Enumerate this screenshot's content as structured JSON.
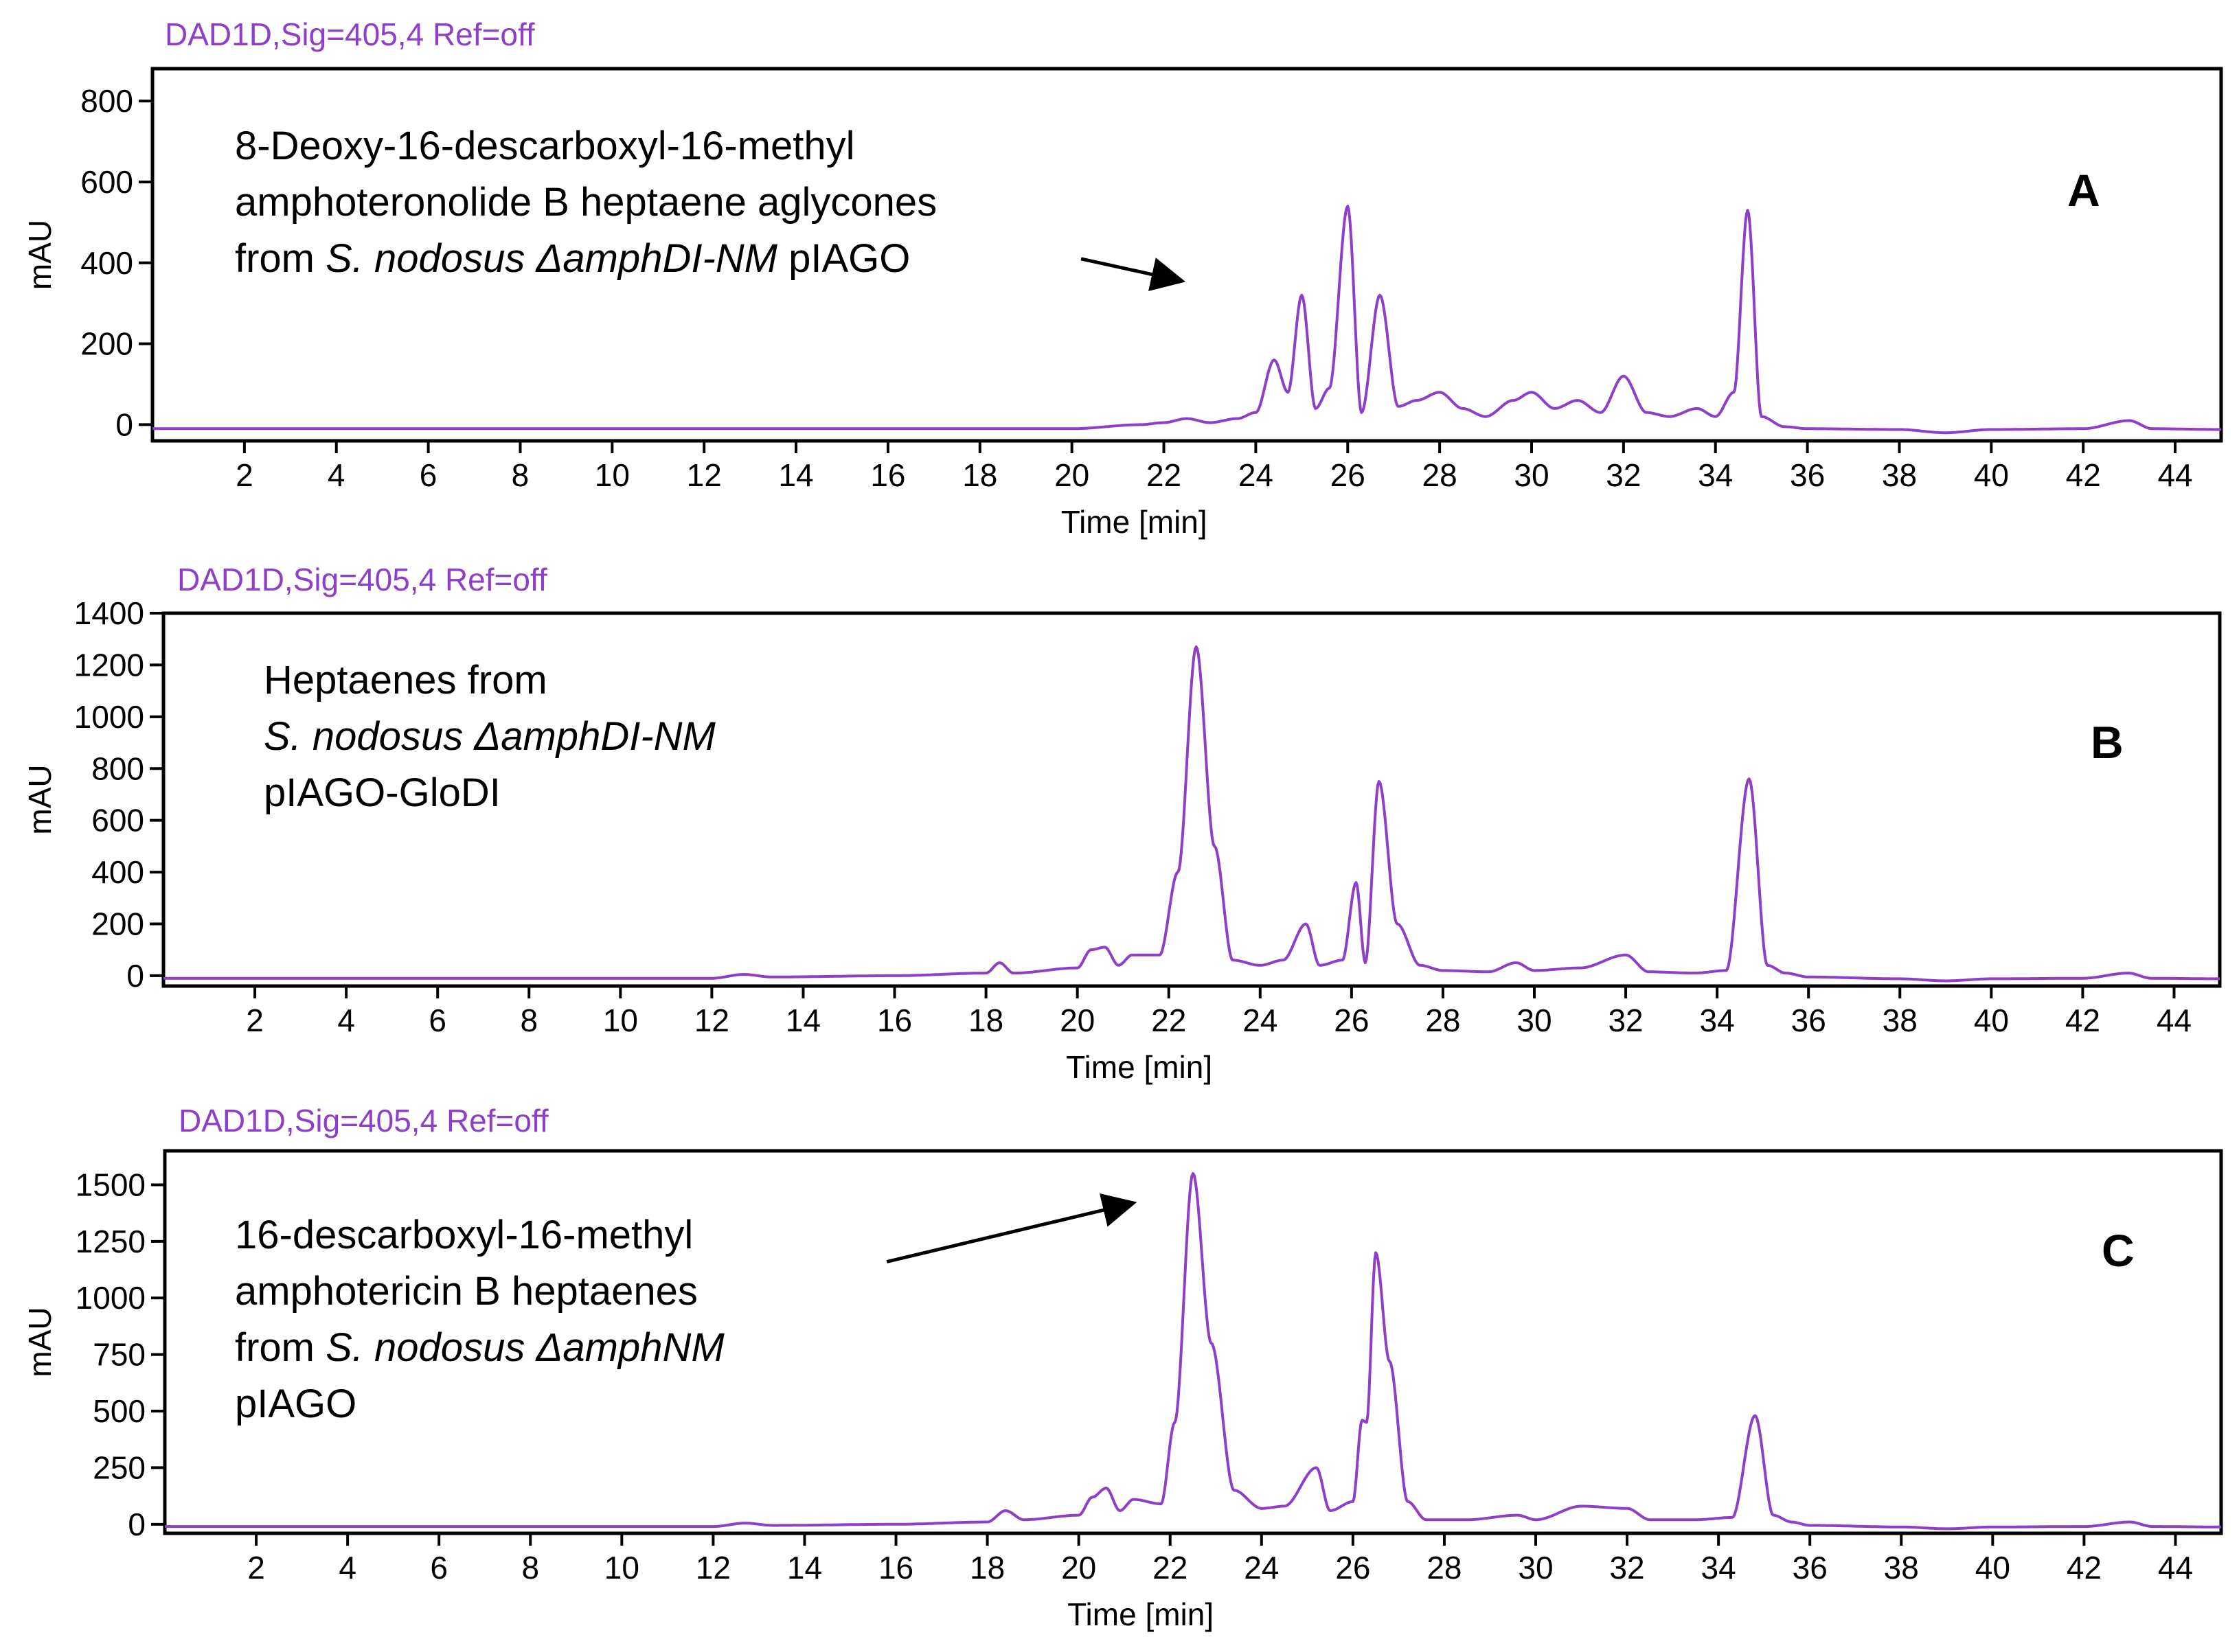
{
  "chart_data": [
    {
      "type": "line",
      "panel_label": "A",
      "signal_label": "DAD1D,Sig=405,4  Ref=off",
      "xlabel": "Time [min]",
      "ylabel": "mAU",
      "xlim": [
        0,
        45
      ],
      "ylim": [
        -40,
        880
      ],
      "xticks": [
        2,
        4,
        6,
        8,
        10,
        12,
        14,
        16,
        18,
        20,
        22,
        24,
        26,
        28,
        30,
        32,
        34,
        36,
        38,
        40,
        42,
        44
      ],
      "yticks": [
        0,
        200,
        400,
        600,
        800
      ],
      "annotation": [
        [
          {
            "t": "8-Deoxy-16-descarboxyl-16-methyl"
          }
        ],
        [
          {
            "t": "amphoteronolide B heptaene aglycones"
          }
        ],
        [
          {
            "t": "from "
          },
          {
            "t": "S. nodosus",
            "i": true
          },
          {
            "t": " "
          },
          {
            "t": "ΔamphDI-NM",
            "i": true
          },
          {
            "t": " pIAGO"
          }
        ]
      ],
      "arrow": {
        "from": [
          20.2,
          410
        ],
        "to": [
          22.4,
          355
        ]
      },
      "baseline": -10,
      "x": [
        0,
        20,
        21.5,
        22.0,
        22.5,
        23.0,
        23.6,
        24.0,
        24.4,
        24.7,
        25.0,
        25.3,
        25.6,
        26.0,
        26.3,
        26.7,
        27.1,
        27.5,
        28.0,
        28.5,
        29.0,
        29.6,
        30.0,
        30.5,
        31.0,
        31.5,
        32.0,
        32.5,
        33.0,
        33.6,
        34.0,
        34.4,
        34.7,
        35.0,
        35.5,
        36.0,
        38.0,
        39.0,
        40.0,
        42.0,
        43.0,
        43.5,
        45
      ],
      "y": [
        -10,
        -10,
        0,
        5,
        15,
        5,
        15,
        30,
        160,
        80,
        320,
        40,
        90,
        540,
        30,
        320,
        45,
        60,
        80,
        40,
        20,
        60,
        80,
        40,
        60,
        30,
        120,
        30,
        20,
        40,
        20,
        80,
        530,
        20,
        -5,
        -10,
        -12,
        -20,
        -12,
        -10,
        10,
        -10,
        -12
      ],
      "peak_widths": 0.14
    },
    {
      "type": "line",
      "panel_label": "B",
      "signal_label": "DAD1D,Sig=405,4  Ref=off",
      "xlabel": "Time [min]",
      "ylabel": "mAU",
      "xlim": [
        0,
        45
      ],
      "ylim": [
        -40,
        1400
      ],
      "xticks": [
        2,
        4,
        6,
        8,
        10,
        12,
        14,
        16,
        18,
        20,
        22,
        24,
        26,
        28,
        30,
        32,
        34,
        36,
        38,
        40,
        42,
        44
      ],
      "yticks": [
        0,
        200,
        400,
        600,
        800,
        1000,
        1200,
        1400
      ],
      "annotation": [
        [
          {
            "t": "Heptaenes from"
          }
        ],
        [
          {
            "t": "S. nodosus",
            "i": true
          },
          {
            "t": " "
          },
          {
            "t": "ΔamphDI-NM",
            "i": true
          }
        ],
        [
          {
            "t": "pIAGO-GloDI"
          }
        ]
      ],
      "baseline": -10,
      "x": [
        0,
        12,
        12.7,
        13.3,
        16.0,
        18.0,
        18.3,
        18.6,
        20.0,
        20.3,
        20.6,
        20.9,
        21.2,
        21.8,
        22.2,
        22.6,
        23.0,
        23.4,
        24.0,
        24.5,
        25.0,
        25.3,
        25.8,
        26.1,
        26.3,
        26.6,
        27.0,
        27.5,
        28.0,
        29.0,
        29.6,
        30.0,
        31.0,
        32.0,
        32.5,
        33.5,
        34.2,
        34.7,
        35.1,
        35.5,
        36.0,
        38.0,
        39.0,
        40.0,
        42.0,
        43.0,
        43.5,
        45
      ],
      "y": [
        -10,
        -10,
        5,
        -5,
        0,
        10,
        50,
        10,
        30,
        100,
        110,
        40,
        80,
        80,
        400,
        1270,
        500,
        60,
        40,
        60,
        200,
        40,
        60,
        360,
        50,
        750,
        200,
        40,
        20,
        15,
        50,
        20,
        30,
        80,
        15,
        10,
        20,
        760,
        40,
        10,
        -5,
        -12,
        -20,
        -12,
        -10,
        10,
        -10,
        -12
      ],
      "peak_widths": 0.14
    },
    {
      "type": "line",
      "panel_label": "C",
      "signal_label": "DAD1D,Sig=405,4  Ref=off",
      "xlabel": "Time [min]",
      "ylabel": "mAU",
      "xlim": [
        0,
        45
      ],
      "ylim": [
        -40,
        1650
      ],
      "xticks": [
        2,
        4,
        6,
        8,
        10,
        12,
        14,
        16,
        18,
        20,
        22,
        24,
        26,
        28,
        30,
        32,
        34,
        36,
        38,
        40,
        42,
        44
      ],
      "yticks": [
        0,
        250,
        500,
        750,
        1000,
        1250,
        1500
      ],
      "annotation": [
        [
          {
            "t": "16-descarboxyl-16-methyl"
          }
        ],
        [
          {
            "t": "amphotericin B heptaenes"
          }
        ],
        [
          {
            "t": "from "
          },
          {
            "t": "S. nodosus",
            "i": true
          },
          {
            "t": " "
          },
          {
            "t": "ΔamphNM",
            "i": true
          }
        ],
        [
          {
            "t": "pIAGO"
          }
        ]
      ],
      "arrow": {
        "from": [
          15.8,
          1160
        ],
        "to": [
          21.2,
          1420
        ]
      },
      "baseline": -10,
      "x": [
        0,
        12,
        12.7,
        13.3,
        16.0,
        18.0,
        18.4,
        18.8,
        20.0,
        20.3,
        20.6,
        20.9,
        21.2,
        21.8,
        22.1,
        22.5,
        22.9,
        23.4,
        24.0,
        24.5,
        25.2,
        25.5,
        26.0,
        26.2,
        26.3,
        26.5,
        26.8,
        27.2,
        27.6,
        28.5,
        29.6,
        30.0,
        31.0,
        32.0,
        32.5,
        33.5,
        34.3,
        34.8,
        35.2,
        35.6,
        36.0,
        38.0,
        39.0,
        40.0,
        42.0,
        43.0,
        43.5,
        45
      ],
      "y": [
        -10,
        -10,
        5,
        -5,
        0,
        10,
        60,
        20,
        40,
        120,
        160,
        60,
        110,
        90,
        450,
        1550,
        800,
        150,
        70,
        80,
        250,
        60,
        100,
        460,
        450,
        1200,
        720,
        100,
        20,
        20,
        40,
        20,
        80,
        70,
        20,
        20,
        30,
        480,
        40,
        10,
        -5,
        -12,
        -20,
        -12,
        -10,
        10,
        -10,
        -12
      ],
      "peak_widths": 0.14
    }
  ]
}
